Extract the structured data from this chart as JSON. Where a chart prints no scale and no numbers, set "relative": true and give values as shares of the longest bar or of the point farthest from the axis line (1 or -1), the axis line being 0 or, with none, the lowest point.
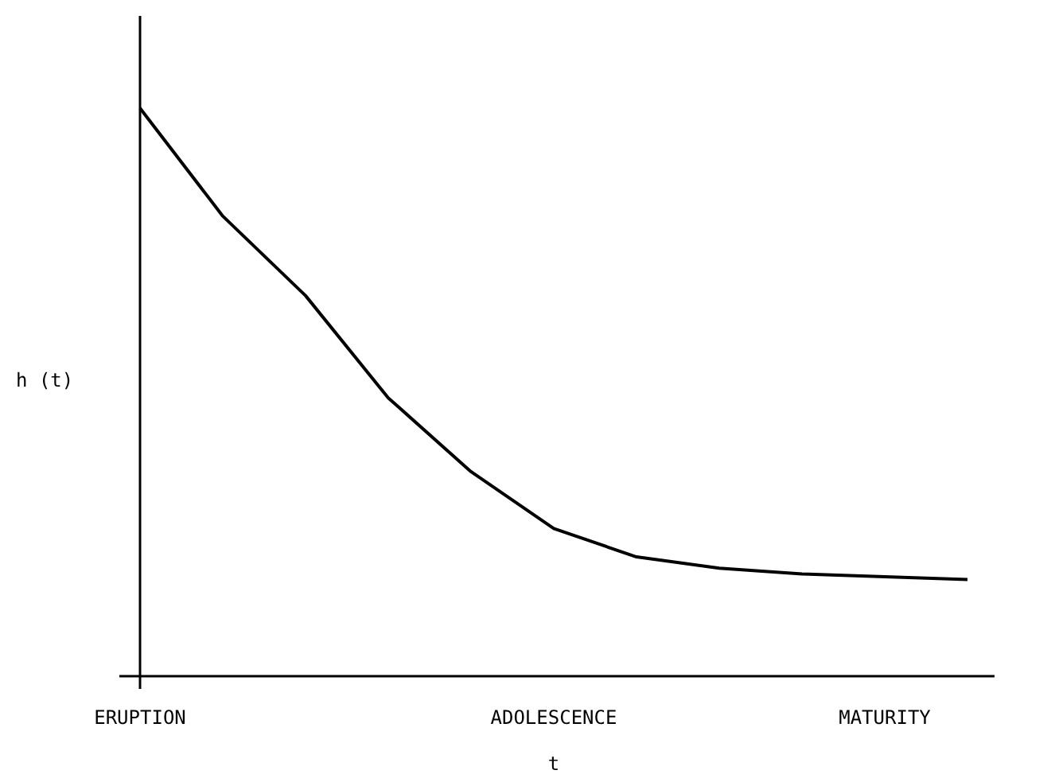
{
  "chart_data": {
    "type": "line",
    "relative": true,
    "xlabel": "t",
    "ylabel": "h (t)",
    "categories": [
      "ERUPTION",
      null,
      null,
      null,
      null,
      "ADOLESCENCE",
      null,
      null,
      null,
      "MATURITY",
      null
    ],
    "series": [
      {
        "color": "#000000",
        "values": [
          1,
          0.81,
          0.67,
          0.49,
          0.36,
          0.26,
          0.21,
          0.19,
          0.18,
          0.175,
          0.17
        ]
      }
    ],
    "marker": "none",
    "line_style": "solid"
  }
}
